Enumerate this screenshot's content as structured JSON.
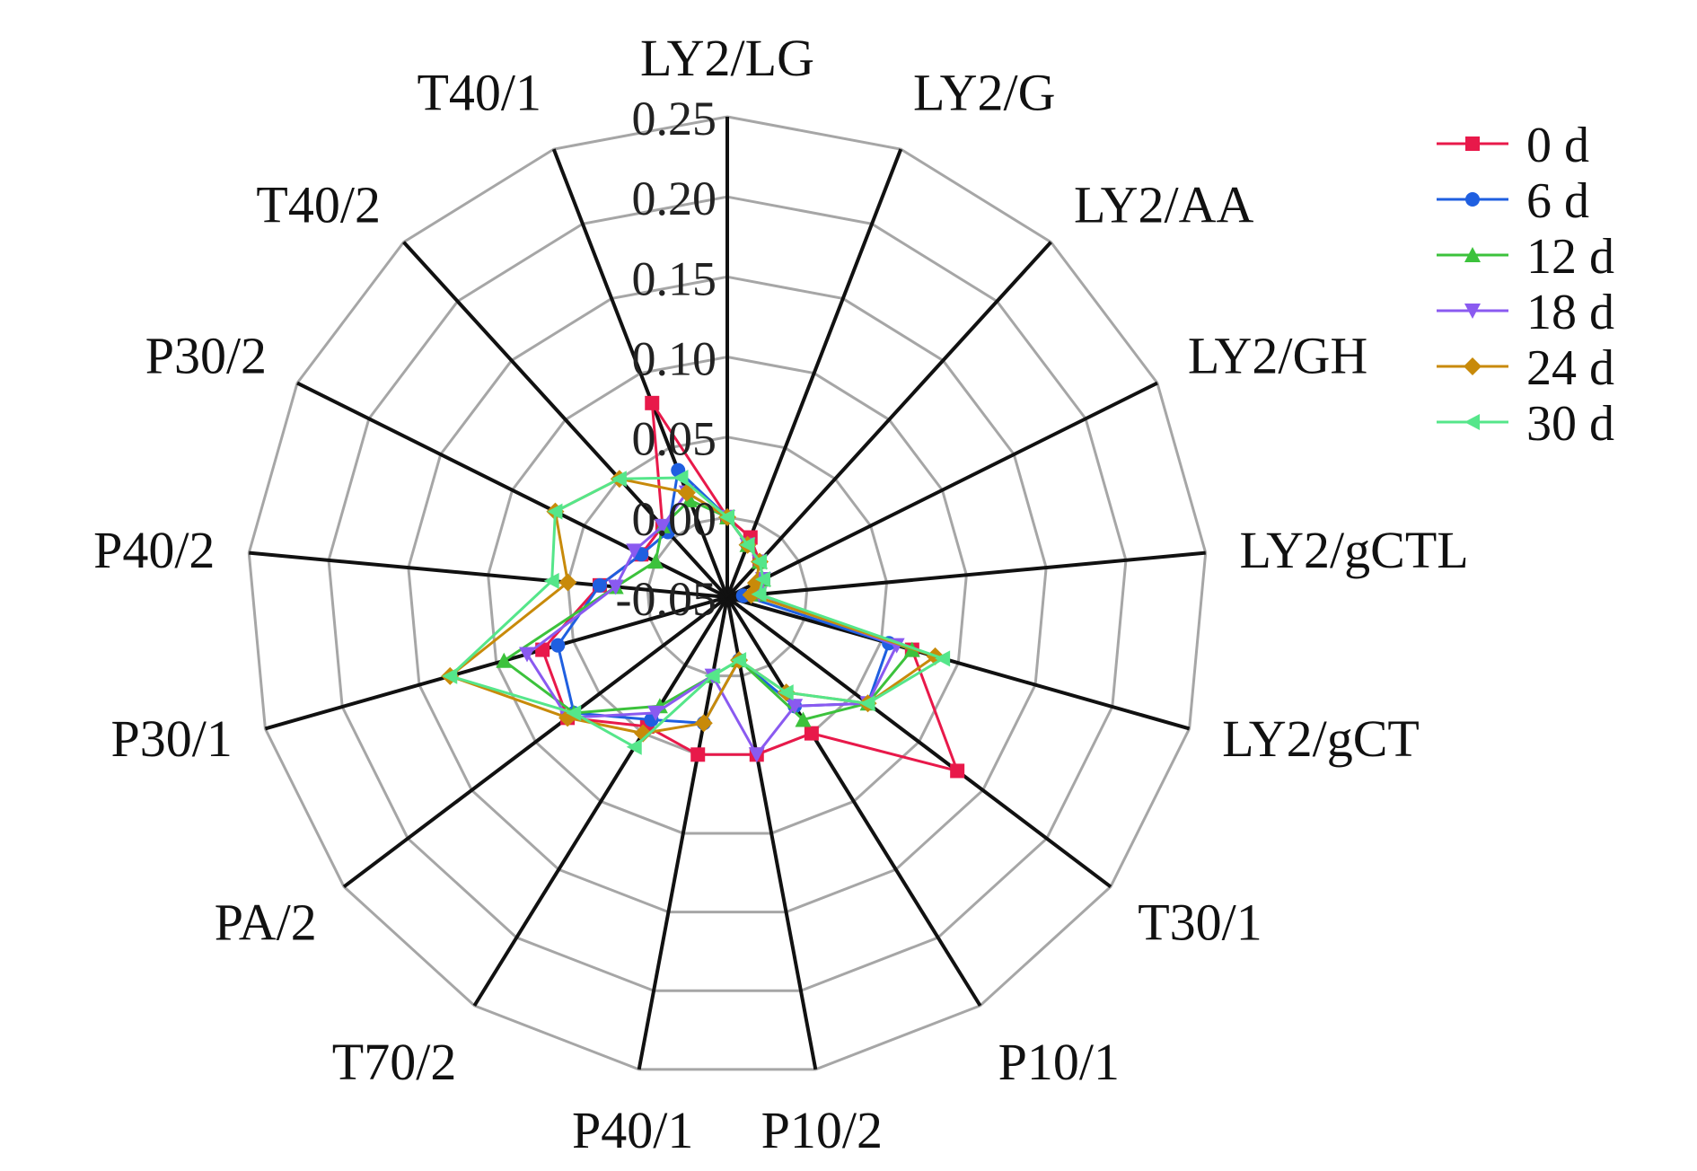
{
  "chart_data": {
    "type": "radar",
    "axes": [
      "LY2/LG",
      "LY2/G",
      "LY2/AA",
      "LY2/GH",
      "LY2/gCTL",
      "LY2/gCT",
      "T30/1",
      "P10/1",
      "P10/2",
      "P40/1",
      "T70/2",
      "PA/2",
      "P30/1",
      "P40/2",
      "P30/2",
      "T40/2",
      "T40/1"
    ],
    "rlim": [
      -0.05,
      0.25
    ],
    "ticks": [
      "-0.05",
      "0.00",
      "0.05",
      "0.10",
      "0.15",
      "0.20",
      "0.25"
    ],
    "tick_values": [
      -0.05,
      0.0,
      0.05,
      0.1,
      0.15,
      0.2,
      0.25
    ],
    "grid": true,
    "legend_position": "top-right",
    "series": [
      {
        "name": "0 d",
        "color": "#e8194a",
        "marker": "square",
        "values": [
          0.0,
          -0.01,
          -0.02,
          -0.025,
          -0.03,
          0.07,
          0.13,
          0.05,
          0.05,
          0.05,
          0.045,
          0.075,
          0.07,
          0.03,
          0.01,
          0.01,
          0.08
        ]
      },
      {
        "name": "6 d",
        "color": "#1f5fe0",
        "marker": "circle",
        "values": [
          0.0,
          -0.015,
          -0.02,
          -0.025,
          -0.04,
          0.055,
          0.06,
          0.03,
          -0.01,
          0.03,
          0.04,
          0.07,
          0.06,
          0.03,
          0.01,
          0.005,
          0.035
        ]
      },
      {
        "name": "12 d",
        "color": "#3cc23c",
        "marker": "triangle-up",
        "values": [
          0.0,
          -0.015,
          -0.02,
          -0.025,
          -0.03,
          0.07,
          0.06,
          0.04,
          -0.01,
          0.0,
          0.03,
          0.07,
          0.095,
          0.02,
          0.0,
          0.01,
          0.015
        ]
      },
      {
        "name": "18 d",
        "color": "#8a5af0",
        "marker": "triangle-down",
        "values": [
          0.0,
          -0.015,
          -0.02,
          -0.025,
          -0.03,
          0.06,
          0.06,
          0.03,
          0.05,
          0.0,
          0.035,
          0.075,
          0.08,
          0.02,
          0.015,
          0.01,
          0.02
        ]
      },
      {
        "name": "24 d",
        "color": "#c88a0a",
        "marker": "diamond",
        "values": [
          0.0,
          -0.015,
          -0.02,
          -0.03,
          -0.035,
          0.085,
          0.06,
          0.02,
          -0.01,
          0.03,
          0.05,
          0.075,
          0.13,
          0.05,
          0.07,
          0.05,
          0.02
        ]
      },
      {
        "name": "30 d",
        "color": "#55e68a",
        "marker": "triangle-left",
        "values": [
          0.0,
          -0.015,
          -0.02,
          -0.025,
          -0.03,
          0.09,
          0.06,
          0.02,
          -0.01,
          0.0,
          0.06,
          0.07,
          0.13,
          0.06,
          0.07,
          0.05,
          0.03
        ]
      }
    ]
  }
}
